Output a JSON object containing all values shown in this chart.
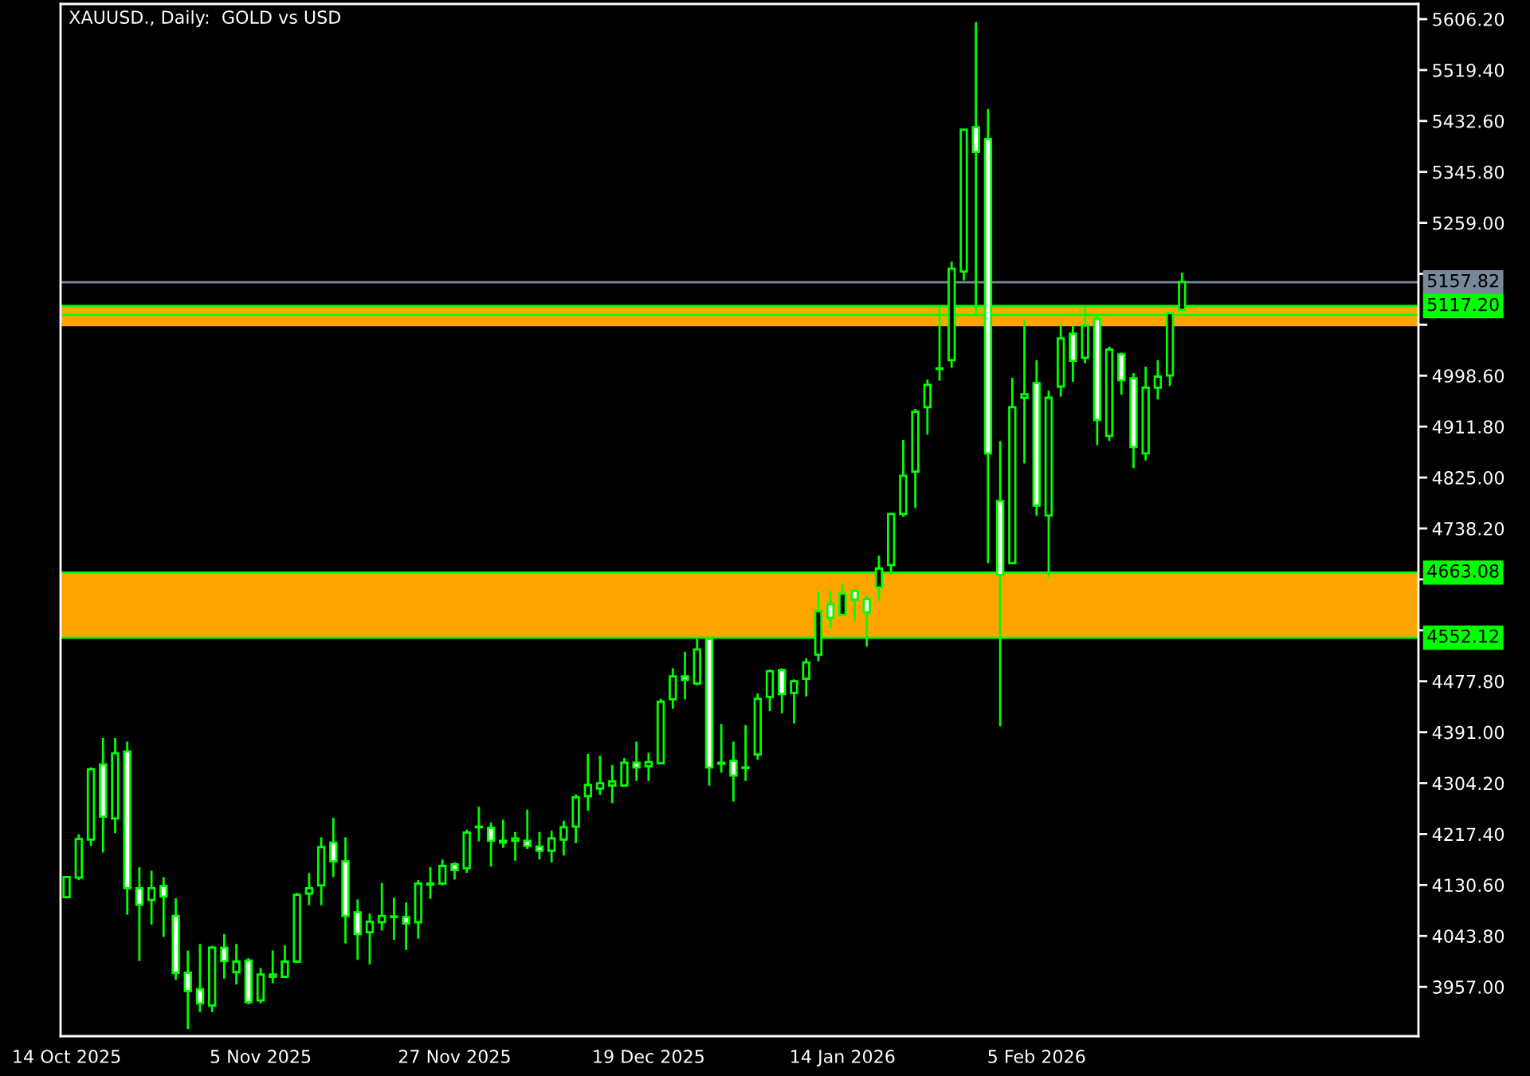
{
  "chart_data": {
    "type": "candlestick",
    "title": "XAUUSD., Daily:  GOLD vs USD",
    "categories": [
      "14 Oct 2025",
      null,
      null,
      null,
      null,
      null,
      null,
      null,
      null,
      null,
      null,
      null,
      null,
      null,
      null,
      null,
      "5 Nov 2025",
      null,
      null,
      null,
      null,
      null,
      null,
      null,
      null,
      null,
      null,
      null,
      null,
      null,
      null,
      null,
      "27 Nov 2025",
      null,
      null,
      null,
      null,
      null,
      null,
      null,
      null,
      null,
      null,
      null,
      null,
      null,
      null,
      null,
      "19 Dec 2025",
      null,
      null,
      null,
      null,
      null,
      null,
      null,
      null,
      null,
      null,
      null,
      null,
      null,
      null,
      null,
      "14 Jan 2026",
      null,
      null,
      null,
      null,
      null,
      null,
      null,
      null,
      null,
      null,
      null,
      null,
      null,
      null,
      null,
      "5 Feb 2026",
      null,
      null,
      null,
      null,
      null,
      null,
      null,
      null,
      null,
      null,
      null,
      null,
      null,
      null,
      null,
      null,
      null,
      null,
      null,
      null,
      null,
      null,
      null,
      null,
      null,
      null,
      null,
      null,
      null,
      null,
      null
    ],
    "ohlc": [
      [
        4110,
        4146,
        4108,
        4144
      ],
      [
        4143,
        4217,
        4139,
        4209
      ],
      [
        4208,
        4331,
        4197,
        4328
      ],
      [
        4336,
        4381,
        4186,
        4247
      ],
      [
        4244,
        4381,
        4219,
        4355
      ],
      [
        4358,
        4375,
        4080,
        4125
      ],
      [
        4125,
        4161,
        4001,
        4097
      ],
      [
        4105,
        4155,
        4063,
        4125
      ],
      [
        4129,
        4144,
        4042,
        4111
      ],
      [
        4078,
        4108,
        3969,
        3981
      ],
      [
        3981,
        4019,
        3885,
        3950
      ],
      [
        3953,
        4030,
        3914,
        3929
      ],
      [
        3925,
        4027,
        3914,
        4024
      ],
      [
        4024,
        4047,
        3971,
        4001
      ],
      [
        3982,
        4030,
        3961,
        4000
      ],
      [
        4002,
        4006,
        3927,
        3931
      ],
      [
        3934,
        3989,
        3929,
        3978
      ],
      [
        3974,
        4019,
        3963,
        3978
      ],
      [
        3974,
        4028,
        3974,
        4000
      ],
      [
        4000,
        4117,
        3999,
        4114
      ],
      [
        4116,
        4151,
        4096,
        4125
      ],
      [
        4130,
        4212,
        4096,
        4195
      ],
      [
        4203,
        4245,
        4144,
        4171
      ],
      [
        4171,
        4212,
        4031,
        4078
      ],
      [
        4084,
        4106,
        4003,
        4047
      ],
      [
        4050,
        4082,
        3995,
        4068
      ],
      [
        4067,
        4134,
        4053,
        4078
      ],
      [
        4076,
        4109,
        4037,
        4077
      ],
      [
        4076,
        4101,
        4020,
        4065
      ],
      [
        4067,
        4139,
        4039,
        4133
      ],
      [
        4131,
        4161,
        4107,
        4133
      ],
      [
        4133,
        4174,
        4130,
        4163
      ],
      [
        4166,
        4169,
        4140,
        4156
      ],
      [
        4159,
        4225,
        4151,
        4220
      ],
      [
        4229,
        4264,
        4205,
        4230
      ],
      [
        4228,
        4237,
        4162,
        4206
      ],
      [
        4206,
        4242,
        4194,
        4203
      ],
      [
        4206,
        4221,
        4172,
        4210
      ],
      [
        4206,
        4259,
        4192,
        4197
      ],
      [
        4196,
        4221,
        4174,
        4189
      ],
      [
        4189,
        4223,
        4169,
        4210
      ],
      [
        4208,
        4240,
        4181,
        4229
      ],
      [
        4230,
        4285,
        4202,
        4280
      ],
      [
        4282,
        4354,
        4257,
        4301
      ],
      [
        4295,
        4351,
        4284,
        4304
      ],
      [
        4300,
        4335,
        4270,
        4307
      ],
      [
        4300,
        4347,
        4299,
        4339
      ],
      [
        4339,
        4375,
        4308,
        4331
      ],
      [
        4333,
        4356,
        4308,
        4340
      ],
      [
        4338,
        4448,
        4337,
        4443
      ],
      [
        4447,
        4500,
        4431,
        4486
      ],
      [
        4486,
        4528,
        4447,
        4480
      ],
      [
        4474,
        4550,
        4471,
        4532
      ],
      [
        4550,
        4551,
        4300,
        4331
      ],
      [
        4337,
        4405,
        4322,
        4339
      ],
      [
        4342,
        4375,
        4273,
        4317
      ],
      [
        4330,
        4403,
        4308,
        4331
      ],
      [
        4353,
        4457,
        4344,
        4448
      ],
      [
        4451,
        4498,
        4427,
        4495
      ],
      [
        4497,
        4500,
        4423,
        4456
      ],
      [
        4458,
        4481,
        4406,
        4478
      ],
      [
        4482,
        4517,
        4452,
        4510
      ],
      [
        4523,
        4631,
        4512,
        4597
      ],
      [
        4609,
        4633,
        4569,
        4586
      ],
      [
        4591,
        4644,
        4588,
        4627
      ],
      [
        4632,
        4633,
        4581,
        4617
      ],
      [
        4618,
        4623,
        4537,
        4595
      ],
      [
        4638,
        4692,
        4615,
        4670
      ],
      [
        4676,
        4765,
        4659,
        4763
      ],
      [
        4763,
        4889,
        4758,
        4828
      ],
      [
        4835,
        4942,
        4773,
        4937
      ],
      [
        4945,
        4992,
        4898,
        4983
      ],
      [
        5010,
        5114,
        4990,
        5011
      ],
      [
        5025,
        5193,
        5012,
        5181
      ],
      [
        5176,
        5419,
        5161,
        5418
      ],
      [
        5422,
        5601,
        5100,
        5380
      ],
      [
        5402,
        5453,
        4679,
        4866
      ],
      [
        4785,
        4887,
        4401,
        4659
      ],
      [
        4679,
        4995,
        4678,
        4945
      ],
      [
        4961,
        5093,
        4849,
        4967
      ],
      [
        4986,
        5025,
        4760,
        4777
      ],
      [
        4760,
        4973,
        4655,
        4961
      ],
      [
        4980,
        5086,
        4963,
        5062
      ],
      [
        5070,
        5084,
        4988,
        5024
      ],
      [
        5029,
        5117,
        5020,
        5084
      ],
      [
        5095,
        5100,
        4880,
        4923
      ],
      [
        4896,
        5048,
        4887,
        5043
      ],
      [
        5035,
        5038,
        4966,
        4991
      ],
      [
        4994,
        5003,
        4841,
        4877
      ],
      [
        4866,
        5014,
        4854,
        4978
      ],
      [
        4978,
        5025,
        4958,
        4997
      ],
      [
        4999,
        5106,
        4981,
        5105
      ],
      [
        5111,
        5174,
        5108,
        5158
      ],
      null,
      null,
      null,
      null,
      null,
      null,
      null,
      null,
      null,
      null,
      null,
      null,
      null,
      null,
      null,
      null,
      null,
      null,
      null
    ],
    "color": "#00ff00",
    "colors": [
      "#000000",
      "#000000",
      "#000000",
      "#ffffff",
      "#000000",
      "#ffffff",
      "#ffffff",
      "#000000",
      "#ffffff",
      "#ffffff",
      "#ffffff",
      "#ffffff",
      "#000000",
      "#ffffff",
      "#000000",
      "#ffffff",
      "#000000",
      "#000000",
      "#000000",
      "#000000",
      "#000000",
      "#000000",
      "#ffffff",
      "#ffffff",
      "#ffffff",
      "#000000",
      "#000000",
      "#000000",
      "#ffffff",
      "#000000",
      "#000000",
      "#000000",
      "#ffffff",
      "#000000",
      "#000000",
      "#ffffff",
      "#ffffff",
      "#000000",
      "#ffffff",
      "#ffffff",
      "#000000",
      "#000000",
      "#000000",
      "#000000",
      "#000000",
      "#000000",
      "#000000",
      "#ffffff",
      "#000000",
      "#000000",
      "#000000",
      "#ffffff",
      "#000000",
      "#ffffff",
      "#000000",
      "#ffffff",
      "#000000",
      "#000000",
      "#000000",
      "#ffffff",
      "#000000",
      "#000000",
      "#000000",
      "#ffffff",
      "#000000",
      "#ffffff",
      "#ffffff",
      "#000000",
      "#000000",
      "#000000",
      "#000000",
      "#000000",
      "#000000",
      "#000000",
      "#000000",
      "#ffffff",
      "#ffffff",
      "#ffffff",
      "#000000",
      "#000000",
      "#ffffff",
      "#000000",
      "#000000",
      "#ffffff",
      "#000000",
      "#ffffff",
      "#000000",
      "#ffffff",
      "#ffffff",
      "#000000",
      "#000000",
      "#000000",
      "#000000",
      null,
      null,
      null,
      null,
      null,
      null,
      null,
      null,
      null,
      null,
      null,
      null,
      null,
      null,
      null,
      null,
      null,
      null,
      null
    ],
    "ylim": [
      3873,
      5632
    ],
    "yticks": [
      {
        "value": 3957.0,
        "label": "3957.00"
      },
      {
        "value": 4043.8,
        "label": "4043.80"
      },
      {
        "value": 4130.6,
        "label": "4130.60"
      },
      {
        "value": 4217.4,
        "label": "4217.40"
      },
      {
        "value": 4304.2,
        "label": "4304.20"
      },
      {
        "value": 4391.0,
        "label": "4391.00"
      },
      {
        "value": 4477.8,
        "label": "4477.80"
      },
      {
        "value": 4564.6,
        "label": null
      },
      {
        "value": 4651.4,
        "label": null
      },
      {
        "value": 4738.2,
        "label": "4738.20"
      },
      {
        "value": 4825.0,
        "label": "4825.00"
      },
      {
        "value": 4911.8,
        "label": "4911.80"
      },
      {
        "value": 4998.6,
        "label": "4998.60"
      },
      {
        "value": 5085.4,
        "label": null
      },
      {
        "value": 5172.2,
        "label": null
      },
      {
        "value": 5259.0,
        "label": "5259.00"
      },
      {
        "value": 5345.8,
        "label": "5345.80"
      },
      {
        "value": 5432.6,
        "label": "5432.60"
      },
      {
        "value": 5519.4,
        "label": "5519.40"
      },
      {
        "value": 5606.2,
        "label": "5606.20"
      }
    ],
    "ref_lines": [
      {
        "axis": "y",
        "value": 5157.82,
        "label": "5157.82",
        "color": "#778899"
      },
      {
        "axis": "y",
        "value": 5117.2,
        "label": "5117.20",
        "color": "#00ff00"
      },
      {
        "axis": "y",
        "value": 5102,
        "label": null,
        "color": "#00ff00"
      },
      {
        "axis": "y",
        "value": 4663.08,
        "label": "4663.08",
        "color": "#00ff00"
      },
      {
        "axis": "y",
        "value": 4552.12,
        "label": "4552.12",
        "color": "#00ff00"
      }
    ],
    "bands": [
      {
        "axis": "y",
        "from": 4552.12,
        "to": 4663.08,
        "color": "#ffa500"
      },
      {
        "axis": "y",
        "from": 5083,
        "to": 5117.2,
        "color": "#ffa500"
      }
    ]
  }
}
